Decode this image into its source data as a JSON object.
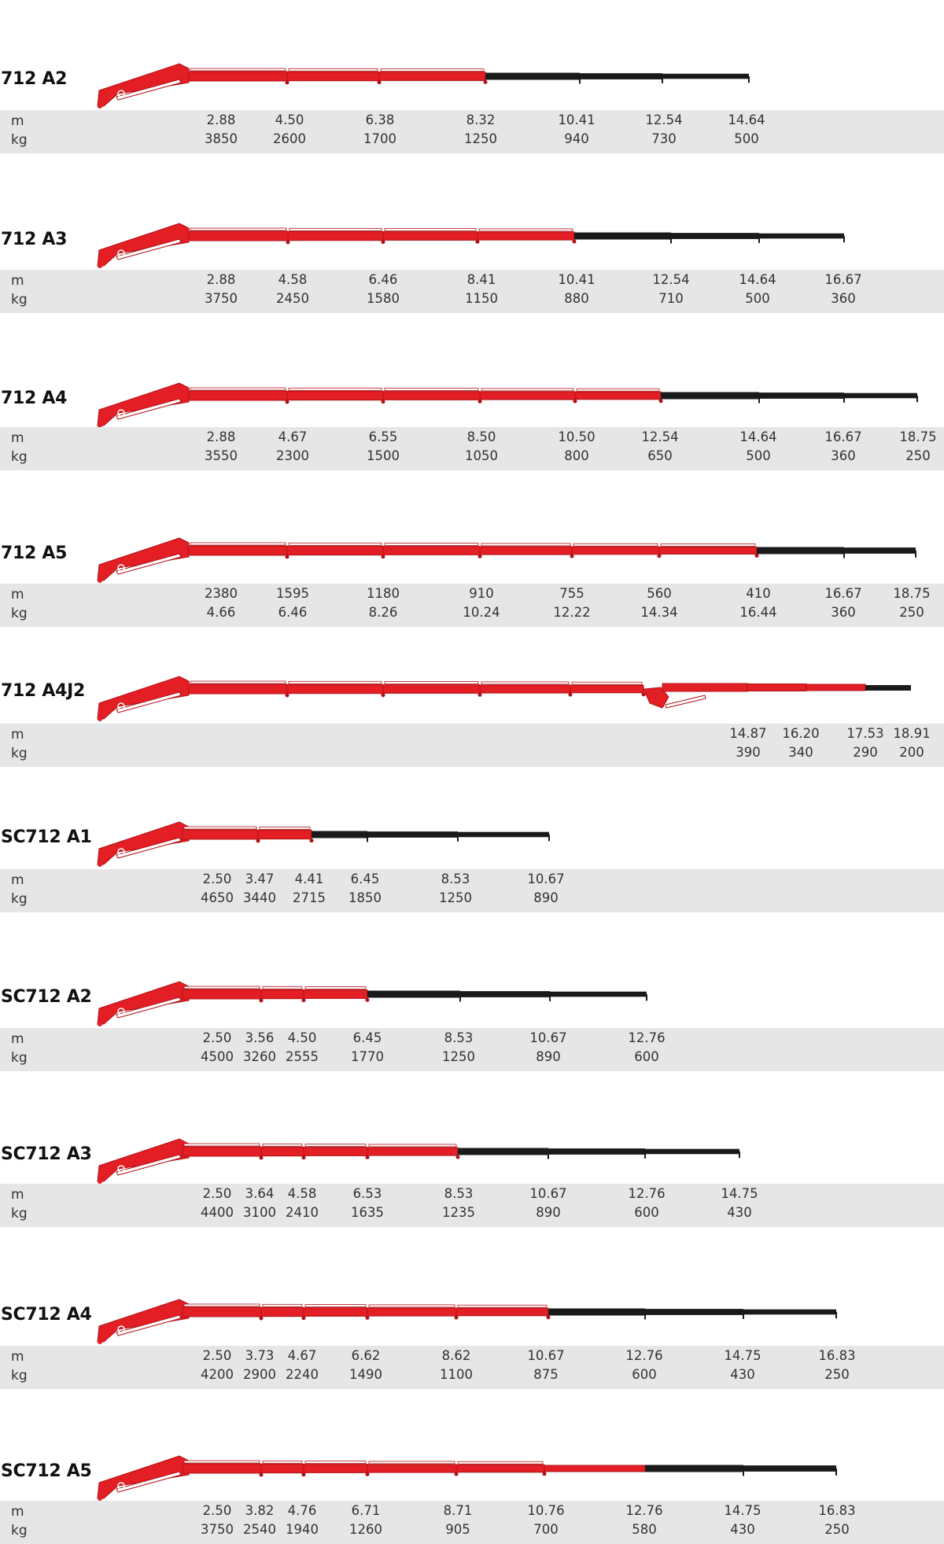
{
  "colors": {
    "boom": "#e31e24",
    "boom_dark": "#b01217",
    "extension": "#1a1a1a",
    "ram": "#ffffff",
    "band": "#e6e6e6"
  },
  "labels": {
    "m": "m",
    "kg": "kg"
  },
  "models": [
    {
      "name": "712 A2",
      "columns": [
        {
          "top": "2.88",
          "bottom": "3850"
        },
        {
          "top": "4.50",
          "bottom": "2600"
        },
        {
          "top": "6.38",
          "bottom": "1700"
        },
        {
          "top": "8.32",
          "bottom": "1250"
        },
        {
          "top": "10.41",
          "bottom": "940"
        },
        {
          "top": "12.54",
          "bottom": "730"
        },
        {
          "top": "14.64",
          "bottom": "500"
        }
      ]
    },
    {
      "name": "712 A3",
      "columns": [
        {
          "top": "2.88",
          "bottom": "3750"
        },
        {
          "top": "4.58",
          "bottom": "2450"
        },
        {
          "top": "6.46",
          "bottom": "1580"
        },
        {
          "top": "8.41",
          "bottom": "1150"
        },
        {
          "top": "10.41",
          "bottom": "880"
        },
        {
          "top": "12.54",
          "bottom": "710"
        },
        {
          "top": "14.64",
          "bottom": "500"
        },
        {
          "top": "16.67",
          "bottom": "360"
        }
      ]
    },
    {
      "name": "712 A4",
      "columns": [
        {
          "top": "2.88",
          "bottom": "3550"
        },
        {
          "top": "4.67",
          "bottom": "2300"
        },
        {
          "top": "6.55",
          "bottom": "1500"
        },
        {
          "top": "8.50",
          "bottom": "1050"
        },
        {
          "top": "10.50",
          "bottom": "800"
        },
        {
          "top": "12.54",
          "bottom": "650"
        },
        {
          "top": "14.64",
          "bottom": "500"
        },
        {
          "top": "16.67",
          "bottom": "360"
        },
        {
          "top": "18.75",
          "bottom": "250"
        }
      ]
    },
    {
      "name": "712 A5",
      "columns": [
        {
          "top": "2380",
          "bottom": "4.66"
        },
        {
          "top": "1595",
          "bottom": "6.46"
        },
        {
          "top": "1180",
          "bottom": "8.26"
        },
        {
          "top": "910",
          "bottom": "10.24"
        },
        {
          "top": "755",
          "bottom": "12.22"
        },
        {
          "top": "560",
          "bottom": "14.34"
        },
        {
          "top": "410",
          "bottom": "16.44"
        },
        {
          "top": "16.67",
          "bottom": "360"
        },
        {
          "top": "18.75",
          "bottom": "250"
        }
      ]
    },
    {
      "name": "712 A4J2",
      "columns": [
        {
          "top": "14.87",
          "bottom": "390"
        },
        {
          "top": "16.20",
          "bottom": "340"
        },
        {
          "top": "17.53",
          "bottom": "290"
        },
        {
          "top": "18.91",
          "bottom": "200"
        }
      ]
    },
    {
      "name": "SC712 A1",
      "columns": [
        {
          "top": "2.50",
          "bottom": "4650"
        },
        {
          "top": "3.47",
          "bottom": "3440"
        },
        {
          "top": "4.41",
          "bottom": "2715"
        },
        {
          "top": "6.45",
          "bottom": "1850"
        },
        {
          "top": "8.53",
          "bottom": "1250"
        },
        {
          "top": "10.67",
          "bottom": "890"
        }
      ]
    },
    {
      "name": "SC712 A2",
      "columns": [
        {
          "top": "2.50",
          "bottom": "4500"
        },
        {
          "top": "3.56",
          "bottom": "3260"
        },
        {
          "top": "4.50",
          "bottom": "2555"
        },
        {
          "top": "6.45",
          "bottom": "1770"
        },
        {
          "top": "8.53",
          "bottom": "1250"
        },
        {
          "top": "10.67",
          "bottom": "890"
        },
        {
          "top": "12.76",
          "bottom": "600"
        }
      ]
    },
    {
      "name": "SC712 A3",
      "columns": [
        {
          "top": "2.50",
          "bottom": "4400"
        },
        {
          "top": "3.64",
          "bottom": "3100"
        },
        {
          "top": "4.58",
          "bottom": "2410"
        },
        {
          "top": "6.53",
          "bottom": "1635"
        },
        {
          "top": "8.53",
          "bottom": "1235"
        },
        {
          "top": "10.67",
          "bottom": "890"
        },
        {
          "top": "12.76",
          "bottom": "600"
        },
        {
          "top": "14.75",
          "bottom": "430"
        }
      ]
    },
    {
      "name": "SC712 A4",
      "columns": [
        {
          "top": "2.50",
          "bottom": "4200"
        },
        {
          "top": "3.73",
          "bottom": "2900"
        },
        {
          "top": "4.67",
          "bottom": "2240"
        },
        {
          "top": "6.62",
          "bottom": "1490"
        },
        {
          "top": "8.62",
          "bottom": "1100"
        },
        {
          "top": "10.67",
          "bottom": "875"
        },
        {
          "top": "12.76",
          "bottom": "600"
        },
        {
          "top": "14.75",
          "bottom": "430"
        },
        {
          "top": "16.83",
          "bottom": "250"
        }
      ]
    },
    {
      "name": "SC712 A5",
      "columns": [
        {
          "top": "2.50",
          "bottom": "3750"
        },
        {
          "top": "3.82",
          "bottom": "2540"
        },
        {
          "top": "4.76",
          "bottom": "1940"
        },
        {
          "top": "6.71",
          "bottom": "1260"
        },
        {
          "top": "8.71",
          "bottom": "905"
        },
        {
          "top": "10.76",
          "bottom": "700"
        },
        {
          "top": "12.76",
          "bottom": "580"
        },
        {
          "top": "14.75",
          "bottom": "430"
        },
        {
          "top": "16.83",
          "bottom": "250"
        }
      ]
    }
  ]
}
